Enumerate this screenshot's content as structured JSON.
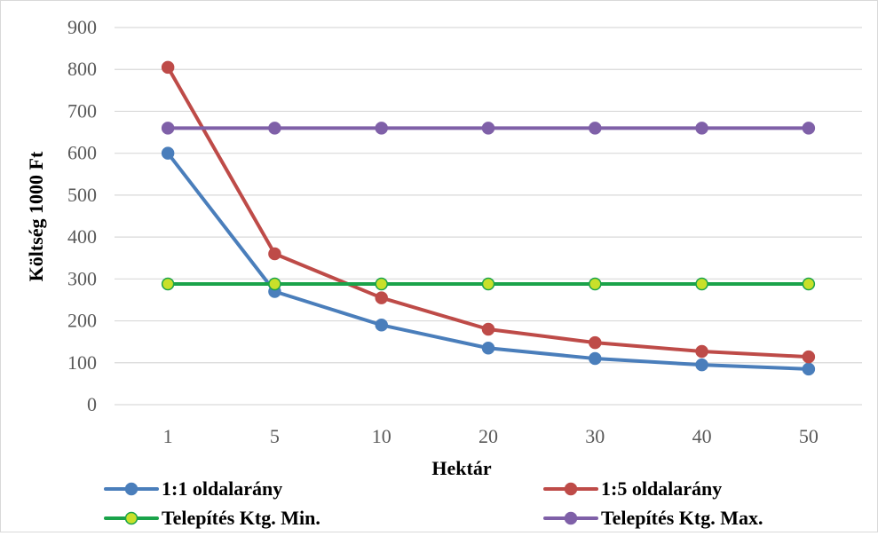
{
  "chart_data": {
    "type": "line",
    "categories": [
      "1",
      "5",
      "10",
      "20",
      "30",
      "40",
      "50"
    ],
    "xlabel": "Hektár",
    "ylabel": "Költség 1000 Ft",
    "ylim": [
      0,
      900
    ],
    "yticks": [
      0,
      100,
      200,
      300,
      400,
      500,
      600,
      700,
      800,
      900
    ],
    "grid": "horizontal",
    "legend_position": "bottom",
    "series": [
      {
        "name": "1:1 oldalarány",
        "color": "#4a7ebb",
        "marker_fill": "#4a7ebb",
        "values": [
          600,
          270,
          190,
          135,
          110,
          95,
          85
        ]
      },
      {
        "name": "1:5 oldalarány",
        "color": "#be4b48",
        "marker_fill": "#be4b48",
        "values": [
          805,
          360,
          255,
          180,
          148,
          127,
          114
        ]
      },
      {
        "name": "Telepítés Ktg. Min.",
        "color": "#1aa34a",
        "marker_fill": "#c8e02a",
        "values": [
          288,
          288,
          288,
          288,
          288,
          288,
          288
        ]
      },
      {
        "name": "Telepítés Ktg. Max.",
        "color": "#7f60a8",
        "marker_fill": "#7f60a8",
        "values": [
          660,
          660,
          660,
          660,
          660,
          660,
          660
        ]
      }
    ]
  }
}
